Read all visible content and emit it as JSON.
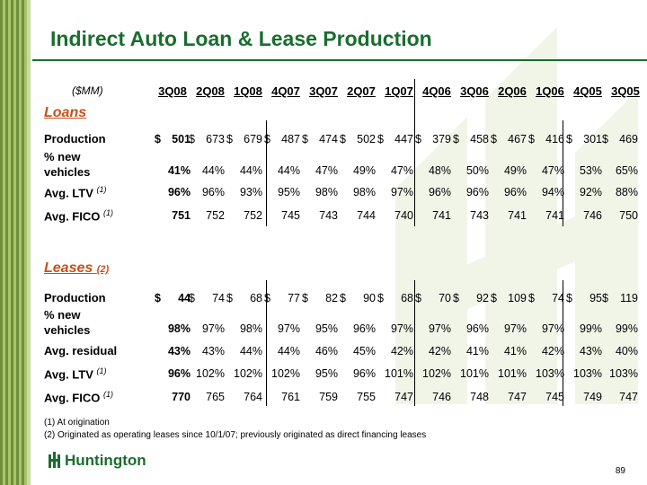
{
  "title": "Indirect Auto Loan & Lease Production",
  "units": "($MM)",
  "periods": [
    "3Q08",
    "2Q08",
    "1Q08",
    "4Q07",
    "3Q07",
    "2Q07",
    "1Q07",
    "4Q06",
    "3Q06",
    "2Q06",
    "1Q06",
    "4Q05",
    "3Q05"
  ],
  "loans": {
    "heading": "Loans",
    "rows": [
      {
        "label": "Production",
        "sup": "",
        "dollar": true,
        "values": [
          "501",
          "673",
          "679",
          "487",
          "474",
          "502",
          "447",
          "379",
          "458",
          "467",
          "416",
          "301",
          "469"
        ]
      },
      {
        "label": "% new\nvehicles",
        "sup": "",
        "dollar": false,
        "values": [
          "41%",
          "44%",
          "44%",
          "44%",
          "47%",
          "49%",
          "47%",
          "48%",
          "50%",
          "49%",
          "47%",
          "53%",
          "65%"
        ]
      },
      {
        "label": "Avg. LTV",
        "sup": "(1)",
        "dollar": false,
        "values": [
          "96%",
          "96%",
          "93%",
          "95%",
          "98%",
          "98%",
          "97%",
          "96%",
          "96%",
          "96%",
          "94%",
          "92%",
          "88%"
        ]
      },
      {
        "label": "Avg. FICO",
        "sup": "(1)",
        "dollar": false,
        "values": [
          "751",
          "752",
          "752",
          "745",
          "743",
          "744",
          "740",
          "741",
          "743",
          "741",
          "741",
          "746",
          "750"
        ]
      }
    ]
  },
  "leases": {
    "heading": "Leases",
    "heading_sup": "(2)",
    "rows": [
      {
        "label": "Production",
        "sup": "",
        "dollar": true,
        "values": [
          "44",
          "74",
          "68",
          "77",
          "82",
          "90",
          "68",
          "70",
          "92",
          "109",
          "74",
          "95",
          "119"
        ]
      },
      {
        "label": "% new\nvehicles",
        "sup": "",
        "dollar": false,
        "values": [
          "98%",
          "97%",
          "98%",
          "97%",
          "95%",
          "96%",
          "97%",
          "97%",
          "96%",
          "97%",
          "97%",
          "99%",
          "99%"
        ]
      },
      {
        "label": "Avg. residual",
        "sup": "",
        "dollar": false,
        "values": [
          "43%",
          "43%",
          "44%",
          "44%",
          "46%",
          "45%",
          "42%",
          "42%",
          "41%",
          "41%",
          "42%",
          "43%",
          "40%"
        ]
      },
      {
        "label": "Avg. LTV",
        "sup": "(1)",
        "dollar": false,
        "values": [
          "96%",
          "102%",
          "102%",
          "102%",
          "95%",
          "96%",
          "101%",
          "102%",
          "101%",
          "101%",
          "103%",
          "103%",
          "103%"
        ]
      },
      {
        "label": "Avg. FICO",
        "sup": "(1)",
        "dollar": false,
        "values": [
          "770",
          "765",
          "764",
          "761",
          "759",
          "755",
          "747",
          "746",
          "748",
          "747",
          "745",
          "749",
          "747"
        ]
      }
    ]
  },
  "dollar_sign": "$",
  "footnotes": [
    "(1)  At origination",
    "(2)  Originated as operating leases since 10/1/07; previously originated as direct financing leases"
  ],
  "logo_text": "Huntington",
  "page_number": "89",
  "colors": {
    "title": "#1a6d2e",
    "section": "#c5521b",
    "stripe": "#6f8f3a"
  }
}
